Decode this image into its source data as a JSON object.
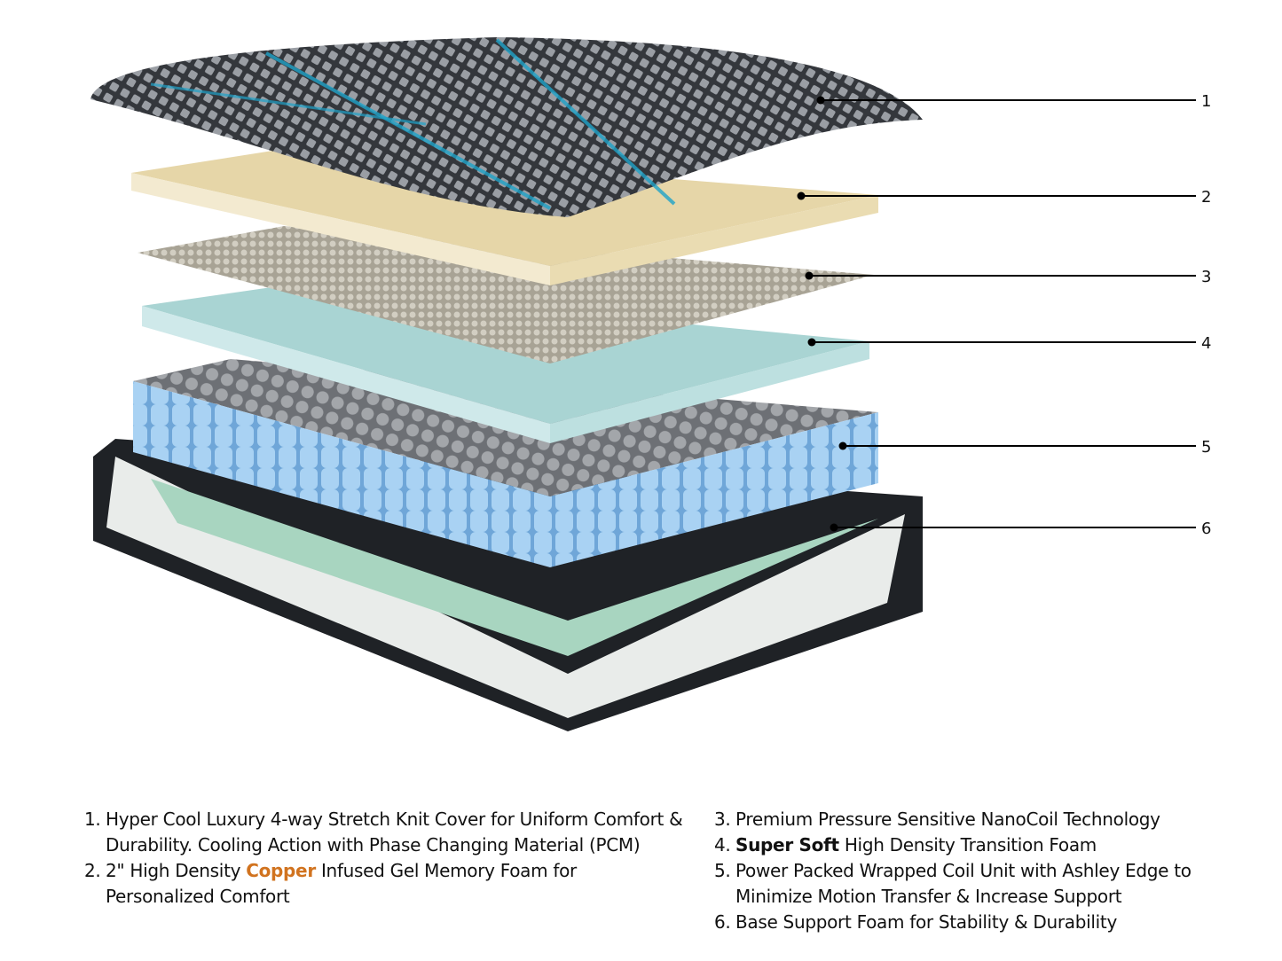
{
  "callouts": [
    "1",
    "2",
    "3",
    "4",
    "5",
    "6"
  ],
  "colors": {
    "copper": "#d1731f",
    "cover": "#3a3d42",
    "cover_accent": "#1fa3c9",
    "memory_foam": "#e6d6a8",
    "nanocoil": "#b9b4a6",
    "transition_foam": "#a9d4d3",
    "coils": "#8fc0e8",
    "base_foam": "#a8d5c0",
    "base_shell": "#1f2226"
  },
  "legend": {
    "left": [
      {
        "number": "1.",
        "parts": [
          {
            "text": "Hyper Cool Luxury 4-way Stretch Knit Cover for Uniform Comfort & Durability. Cooling Action with Phase Changing Material (PCM)",
            "style": "normal"
          }
        ]
      },
      {
        "number": "2.",
        "parts": [
          {
            "text": "2\" High Density ",
            "style": "normal"
          },
          {
            "text": "Copper",
            "style": "copper"
          },
          {
            "text": " Infused Gel Memory Foam for Personalized Comfort",
            "style": "normal"
          }
        ]
      }
    ],
    "right": [
      {
        "number": "3.",
        "parts": [
          {
            "text": "Premium Pressure Sensitive NanoCoil Technology",
            "style": "normal"
          }
        ]
      },
      {
        "number": "4.",
        "parts": [
          {
            "text": "Super Soft",
            "style": "bold"
          },
          {
            "text": " High Density Transition Foam",
            "style": "normal"
          }
        ]
      },
      {
        "number": "5.",
        "parts": [
          {
            "text": "Power Packed Wrapped Coil Unit with Ashley Edge to Minimize Motion Transfer & Increase Support",
            "style": "normal"
          }
        ]
      },
      {
        "number": "6.",
        "parts": [
          {
            "text": "Base Support Foam for Stability & Durability",
            "style": "normal"
          }
        ]
      }
    ]
  }
}
